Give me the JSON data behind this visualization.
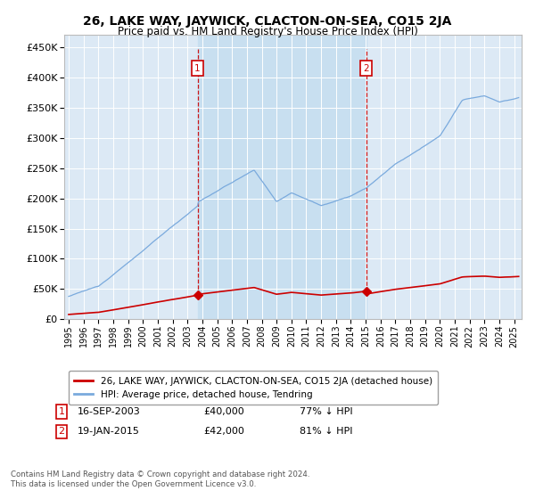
{
  "title": "26, LAKE WAY, JAYWICK, CLACTON-ON-SEA, CO15 2JA",
  "subtitle": "Price paid vs. HM Land Registry's House Price Index (HPI)",
  "legend_label_red": "26, LAKE WAY, JAYWICK, CLACTON-ON-SEA, CO15 2JA (detached house)",
  "legend_label_blue": "HPI: Average price, detached house, Tendring",
  "footnote": "Contains HM Land Registry data © Crown copyright and database right 2024.\nThis data is licensed under the Open Government Licence v3.0.",
  "purchase1_label": "16-SEP-2003",
  "purchase1_price": 40000,
  "purchase1_pct": "77% ↓ HPI",
  "purchase1_num": "1",
  "purchase2_label": "19-JAN-2015",
  "purchase2_price": 42000,
  "purchase2_pct": "81% ↓ HPI",
  "purchase2_num": "2",
  "ylim_min": 0,
  "ylim_max": 470000,
  "background_color": "#dce9f5",
  "shaded_color": "#c8dff0",
  "red_color": "#cc0000",
  "blue_color": "#7aaadd",
  "grid_color": "#ffffff",
  "annotation_box_color": "#cc0000"
}
